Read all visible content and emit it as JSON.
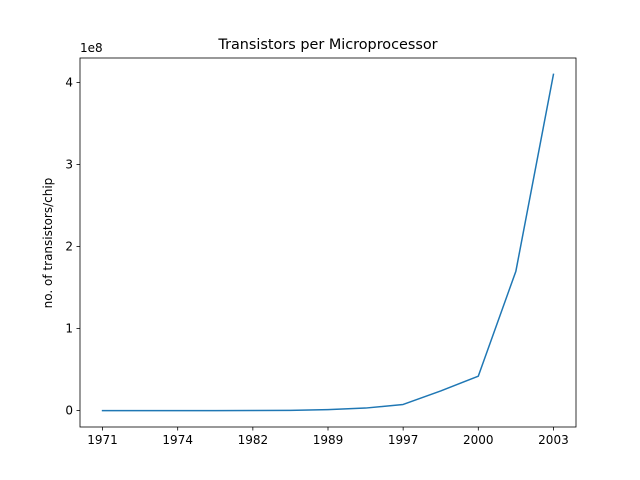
{
  "chart_data": {
    "type": "line",
    "title": "Transistors per Microprocessor",
    "xlabel": "",
    "ylabel": "no. of transistors/chip",
    "y_offset_label": "1e8",
    "x_tick_labels": [
      "1971",
      "1974",
      "1982",
      "1989",
      "1997",
      "2000",
      "2003"
    ],
    "y_ticks": [
      0,
      100000000,
      200000000,
      300000000,
      400000000
    ],
    "y_tick_labels": [
      "0",
      "1",
      "2",
      "3",
      "4"
    ],
    "ylim": [
      -20000000,
      430000000
    ],
    "series": [
      {
        "color": "#1f77b4",
        "x": [
          1971,
          1972,
          1974,
          1978,
          1982,
          1985,
          1989,
          1993,
          1997,
          1999,
          2000,
          2002,
          2003
        ],
        "y": [
          2300,
          3500,
          6000,
          29000,
          134000,
          275000,
          1200000,
          3100000,
          7500000,
          24000000,
          42000000,
          170000000,
          410000000
        ]
      }
    ]
  }
}
